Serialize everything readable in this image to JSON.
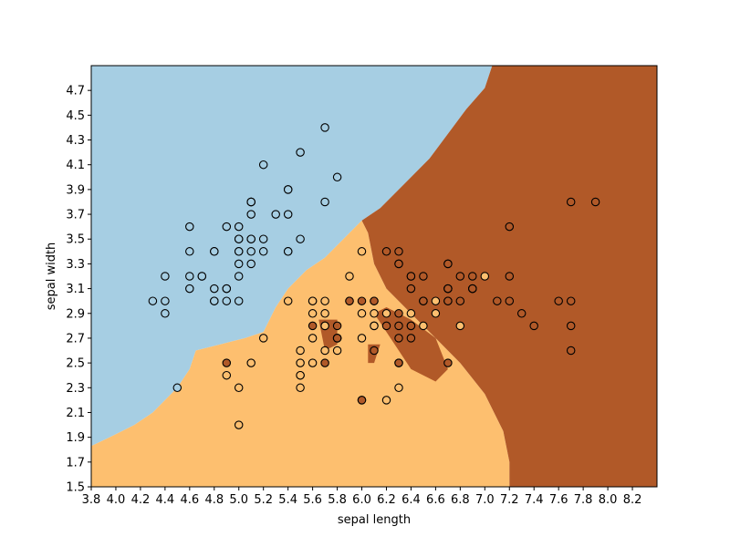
{
  "chart_data": {
    "type": "scatter",
    "title": "",
    "xlabel": "sepal length",
    "ylabel": "sepal width",
    "xlim": [
      3.8,
      8.4
    ],
    "ylim": [
      1.5,
      4.9
    ],
    "xticks": [
      "3.8",
      "4.0",
      "4.2",
      "4.4",
      "4.6",
      "4.8",
      "5.0",
      "5.2",
      "5.4",
      "5.6",
      "5.8",
      "6.0",
      "6.2",
      "6.4",
      "6.6",
      "6.8",
      "7.0",
      "7.2",
      "7.4",
      "7.6",
      "7.8",
      "8.0",
      "8.2"
    ],
    "yticks": [
      "1.5",
      "1.7",
      "1.9",
      "2.1",
      "2.3",
      "2.5",
      "2.7",
      "2.9",
      "3.1",
      "3.3",
      "3.5",
      "3.7",
      "3.9",
      "4.1",
      "4.3",
      "4.5",
      "4.7"
    ],
    "grid": false,
    "background": "decision regions",
    "region_colors": {
      "class_0": "#a6cee3",
      "class_1": "#fdbf6f",
      "class_2": "#b15928"
    },
    "point_colors": {
      "class_0": "#a6cee3",
      "class_1": "#fdbf6f",
      "class_2": "#b15928"
    },
    "points": [
      {
        "x": 5.1,
        "y": 3.5,
        "c": 0
      },
      {
        "x": 4.9,
        "y": 3.0,
        "c": 0
      },
      {
        "x": 4.7,
        "y": 3.2,
        "c": 0
      },
      {
        "x": 4.6,
        "y": 3.1,
        "c": 0
      },
      {
        "x": 5.0,
        "y": 3.6,
        "c": 0
      },
      {
        "x": 5.4,
        "y": 3.9,
        "c": 0
      },
      {
        "x": 4.6,
        "y": 3.4,
        "c": 0
      },
      {
        "x": 5.0,
        "y": 3.4,
        "c": 0
      },
      {
        "x": 4.4,
        "y": 2.9,
        "c": 0
      },
      {
        "x": 4.9,
        "y": 3.1,
        "c": 0
      },
      {
        "x": 5.4,
        "y": 3.7,
        "c": 0
      },
      {
        "x": 4.8,
        "y": 3.4,
        "c": 0
      },
      {
        "x": 4.8,
        "y": 3.0,
        "c": 0
      },
      {
        "x": 4.3,
        "y": 3.0,
        "c": 0
      },
      {
        "x": 5.8,
        "y": 4.0,
        "c": 0
      },
      {
        "x": 5.7,
        "y": 4.4,
        "c": 0
      },
      {
        "x": 5.4,
        "y": 3.9,
        "c": 0
      },
      {
        "x": 5.1,
        "y": 3.5,
        "c": 0
      },
      {
        "x": 5.7,
        "y": 3.8,
        "c": 0
      },
      {
        "x": 5.1,
        "y": 3.8,
        "c": 0
      },
      {
        "x": 5.4,
        "y": 3.4,
        "c": 0
      },
      {
        "x": 5.1,
        "y": 3.7,
        "c": 0
      },
      {
        "x": 4.6,
        "y": 3.6,
        "c": 0
      },
      {
        "x": 5.1,
        "y": 3.3,
        "c": 0
      },
      {
        "x": 4.8,
        "y": 3.4,
        "c": 0
      },
      {
        "x": 5.0,
        "y": 3.0,
        "c": 0
      },
      {
        "x": 5.0,
        "y": 3.4,
        "c": 0
      },
      {
        "x": 5.2,
        "y": 3.5,
        "c": 0
      },
      {
        "x": 5.2,
        "y": 3.4,
        "c": 0
      },
      {
        "x": 4.7,
        "y": 3.2,
        "c": 0
      },
      {
        "x": 4.8,
        "y": 3.1,
        "c": 0
      },
      {
        "x": 5.4,
        "y": 3.4,
        "c": 0
      },
      {
        "x": 5.2,
        "y": 4.1,
        "c": 0
      },
      {
        "x": 5.5,
        "y": 4.2,
        "c": 0
      },
      {
        "x": 4.9,
        "y": 3.1,
        "c": 0
      },
      {
        "x": 5.0,
        "y": 3.2,
        "c": 0
      },
      {
        "x": 5.5,
        "y": 3.5,
        "c": 0
      },
      {
        "x": 4.9,
        "y": 3.6,
        "c": 0
      },
      {
        "x": 4.4,
        "y": 3.0,
        "c": 0
      },
      {
        "x": 5.1,
        "y": 3.4,
        "c": 0
      },
      {
        "x": 5.0,
        "y": 3.5,
        "c": 0
      },
      {
        "x": 4.5,
        "y": 2.3,
        "c": 0
      },
      {
        "x": 4.4,
        "y": 3.2,
        "c": 0
      },
      {
        "x": 5.0,
        "y": 3.5,
        "c": 0
      },
      {
        "x": 5.1,
        "y": 3.8,
        "c": 0
      },
      {
        "x": 4.8,
        "y": 3.0,
        "c": 0
      },
      {
        "x": 5.1,
        "y": 3.8,
        "c": 0
      },
      {
        "x": 4.6,
        "y": 3.2,
        "c": 0
      },
      {
        "x": 5.3,
        "y": 3.7,
        "c": 0
      },
      {
        "x": 5.0,
        "y": 3.3,
        "c": 0
      },
      {
        "x": 7.0,
        "y": 3.2,
        "c": 1
      },
      {
        "x": 6.4,
        "y": 3.2,
        "c": 1
      },
      {
        "x": 6.9,
        "y": 3.1,
        "c": 1
      },
      {
        "x": 5.5,
        "y": 2.3,
        "c": 1
      },
      {
        "x": 6.5,
        "y": 2.8,
        "c": 1
      },
      {
        "x": 5.7,
        "y": 2.8,
        "c": 1
      },
      {
        "x": 6.3,
        "y": 3.3,
        "c": 1
      },
      {
        "x": 4.9,
        "y": 2.4,
        "c": 1
      },
      {
        "x": 6.6,
        "y": 2.9,
        "c": 1
      },
      {
        "x": 5.2,
        "y": 2.7,
        "c": 1
      },
      {
        "x": 5.0,
        "y": 2.0,
        "c": 1
      },
      {
        "x": 5.9,
        "y": 3.0,
        "c": 1
      },
      {
        "x": 6.0,
        "y": 2.2,
        "c": 1
      },
      {
        "x": 6.1,
        "y": 2.9,
        "c": 1
      },
      {
        "x": 5.6,
        "y": 2.9,
        "c": 1
      },
      {
        "x": 6.7,
        "y": 3.1,
        "c": 1
      },
      {
        "x": 5.6,
        "y": 3.0,
        "c": 1
      },
      {
        "x": 5.8,
        "y": 2.7,
        "c": 1
      },
      {
        "x": 6.2,
        "y": 2.2,
        "c": 1
      },
      {
        "x": 5.6,
        "y": 2.5,
        "c": 1
      },
      {
        "x": 5.9,
        "y": 3.2,
        "c": 1
      },
      {
        "x": 6.1,
        "y": 2.8,
        "c": 1
      },
      {
        "x": 6.3,
        "y": 2.5,
        "c": 1
      },
      {
        "x": 6.1,
        "y": 2.8,
        "c": 1
      },
      {
        "x": 6.4,
        "y": 2.9,
        "c": 1
      },
      {
        "x": 6.6,
        "y": 3.0,
        "c": 1
      },
      {
        "x": 6.8,
        "y": 2.8,
        "c": 1
      },
      {
        "x": 6.7,
        "y": 3.0,
        "c": 1
      },
      {
        "x": 6.0,
        "y": 2.9,
        "c": 1
      },
      {
        "x": 5.7,
        "y": 2.6,
        "c": 1
      },
      {
        "x": 5.5,
        "y": 2.4,
        "c": 1
      },
      {
        "x": 5.5,
        "y": 2.4,
        "c": 1
      },
      {
        "x": 5.8,
        "y": 2.7,
        "c": 1
      },
      {
        "x": 6.0,
        "y": 2.7,
        "c": 1
      },
      {
        "x": 5.4,
        "y": 3.0,
        "c": 1
      },
      {
        "x": 6.0,
        "y": 3.4,
        "c": 1
      },
      {
        "x": 6.7,
        "y": 3.1,
        "c": 1
      },
      {
        "x": 6.3,
        "y": 2.3,
        "c": 1
      },
      {
        "x": 5.6,
        "y": 3.0,
        "c": 1
      },
      {
        "x": 5.5,
        "y": 2.5,
        "c": 1
      },
      {
        "x": 5.5,
        "y": 2.6,
        "c": 1
      },
      {
        "x": 6.1,
        "y": 3.0,
        "c": 1
      },
      {
        "x": 5.8,
        "y": 2.6,
        "c": 1
      },
      {
        "x": 5.0,
        "y": 2.3,
        "c": 1
      },
      {
        "x": 5.6,
        "y": 2.7,
        "c": 1
      },
      {
        "x": 5.7,
        "y": 3.0,
        "c": 1
      },
      {
        "x": 5.7,
        "y": 2.9,
        "c": 1
      },
      {
        "x": 6.2,
        "y": 2.9,
        "c": 1
      },
      {
        "x": 5.1,
        "y": 2.5,
        "c": 1
      },
      {
        "x": 5.7,
        "y": 2.8,
        "c": 1
      },
      {
        "x": 6.3,
        "y": 3.3,
        "c": 2
      },
      {
        "x": 5.8,
        "y": 2.7,
        "c": 2
      },
      {
        "x": 7.1,
        "y": 3.0,
        "c": 2
      },
      {
        "x": 6.3,
        "y": 2.9,
        "c": 2
      },
      {
        "x": 6.5,
        "y": 3.0,
        "c": 2
      },
      {
        "x": 7.6,
        "y": 3.0,
        "c": 2
      },
      {
        "x": 4.9,
        "y": 2.5,
        "c": 2
      },
      {
        "x": 7.3,
        "y": 2.9,
        "c": 2
      },
      {
        "x": 6.7,
        "y": 2.5,
        "c": 2
      },
      {
        "x": 7.2,
        "y": 3.6,
        "c": 2
      },
      {
        "x": 6.5,
        "y": 3.2,
        "c": 2
      },
      {
        "x": 6.4,
        "y": 2.7,
        "c": 2
      },
      {
        "x": 6.8,
        "y": 3.0,
        "c": 2
      },
      {
        "x": 5.7,
        "y": 2.5,
        "c": 2
      },
      {
        "x": 5.8,
        "y": 2.8,
        "c": 2
      },
      {
        "x": 6.4,
        "y": 3.2,
        "c": 2
      },
      {
        "x": 6.5,
        "y": 3.0,
        "c": 2
      },
      {
        "x": 7.7,
        "y": 3.8,
        "c": 2
      },
      {
        "x": 7.7,
        "y": 2.6,
        "c": 2
      },
      {
        "x": 6.0,
        "y": 2.2,
        "c": 2
      },
      {
        "x": 6.9,
        "y": 3.2,
        "c": 2
      },
      {
        "x": 5.6,
        "y": 2.8,
        "c": 2
      },
      {
        "x": 7.7,
        "y": 2.8,
        "c": 2
      },
      {
        "x": 6.3,
        "y": 2.7,
        "c": 2
      },
      {
        "x": 6.7,
        "y": 3.3,
        "c": 2
      },
      {
        "x": 7.2,
        "y": 3.2,
        "c": 2
      },
      {
        "x": 6.2,
        "y": 2.8,
        "c": 2
      },
      {
        "x": 6.1,
        "y": 3.0,
        "c": 2
      },
      {
        "x": 6.4,
        "y": 2.8,
        "c": 2
      },
      {
        "x": 7.2,
        "y": 3.0,
        "c": 2
      },
      {
        "x": 7.4,
        "y": 2.8,
        "c": 2
      },
      {
        "x": 7.9,
        "y": 3.8,
        "c": 2
      },
      {
        "x": 6.4,
        "y": 2.8,
        "c": 2
      },
      {
        "x": 6.3,
        "y": 2.8,
        "c": 2
      },
      {
        "x": 6.1,
        "y": 2.6,
        "c": 2
      },
      {
        "x": 7.7,
        "y": 3.0,
        "c": 2
      },
      {
        "x": 6.3,
        "y": 3.4,
        "c": 2
      },
      {
        "x": 6.4,
        "y": 3.1,
        "c": 2
      },
      {
        "x": 6.0,
        "y": 3.0,
        "c": 2
      },
      {
        "x": 6.9,
        "y": 3.1,
        "c": 2
      },
      {
        "x": 6.7,
        "y": 3.1,
        "c": 2
      },
      {
        "x": 6.9,
        "y": 3.1,
        "c": 2
      },
      {
        "x": 5.8,
        "y": 2.7,
        "c": 2
      },
      {
        "x": 6.8,
        "y": 3.2,
        "c": 2
      },
      {
        "x": 6.7,
        "y": 3.3,
        "c": 2
      },
      {
        "x": 6.7,
        "y": 3.0,
        "c": 2
      },
      {
        "x": 6.3,
        "y": 2.5,
        "c": 2
      },
      {
        "x": 6.5,
        "y": 3.0,
        "c": 2
      },
      {
        "x": 6.2,
        "y": 3.4,
        "c": 2
      },
      {
        "x": 5.9,
        "y": 3.0,
        "c": 2
      }
    ]
  }
}
